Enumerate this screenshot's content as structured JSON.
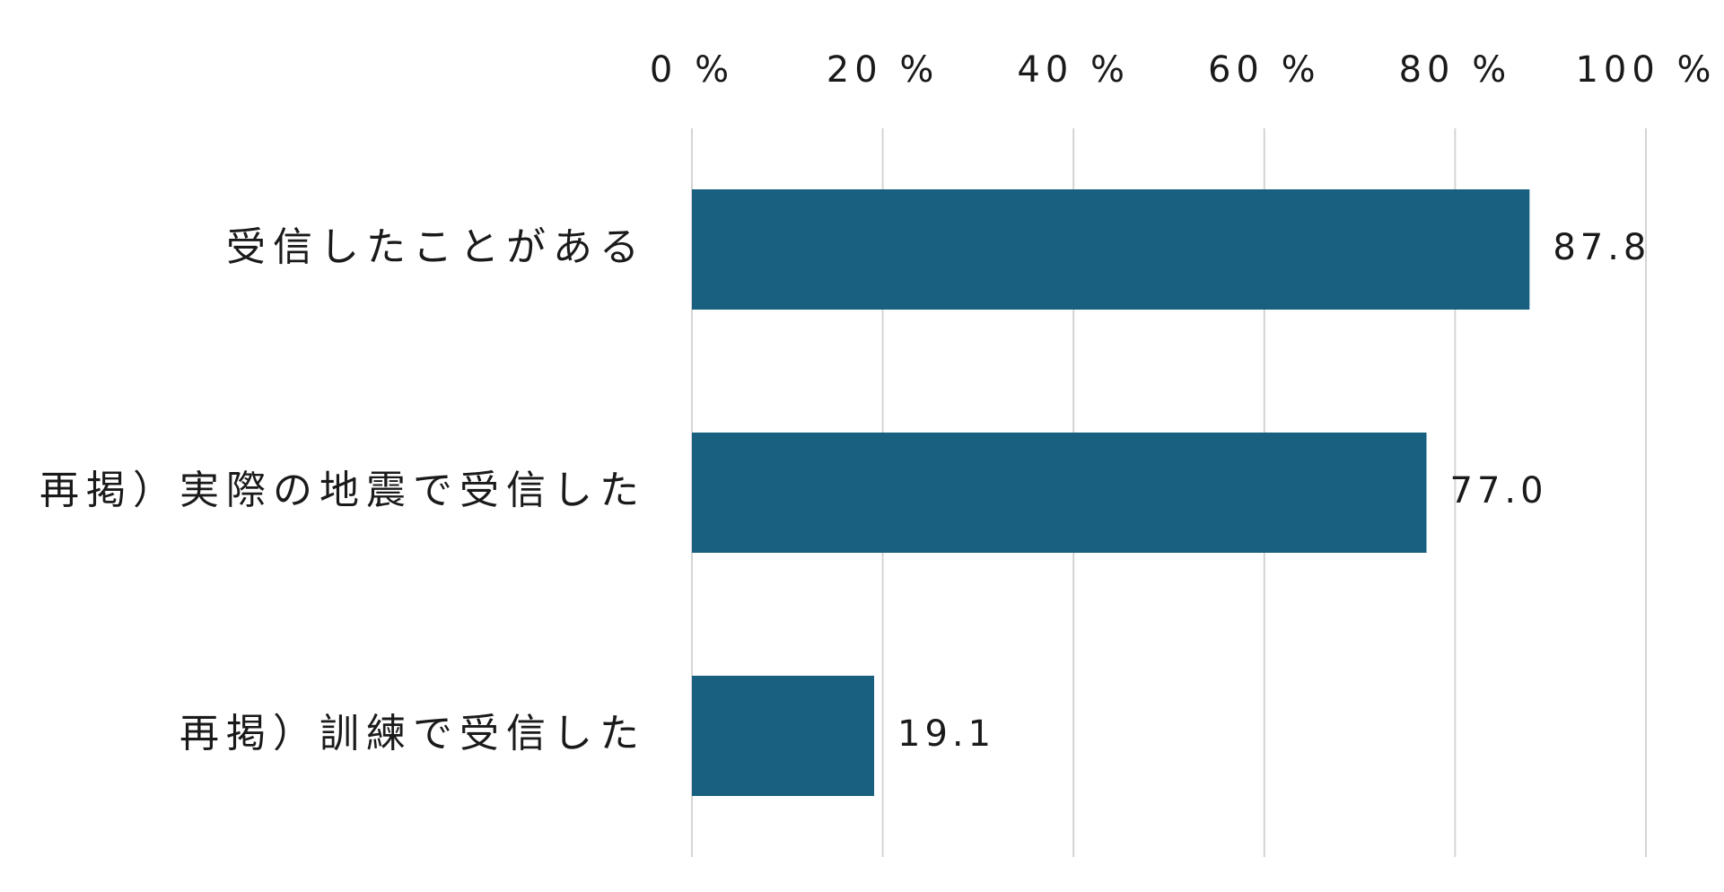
{
  "chart_data": {
    "type": "bar",
    "orientation": "horizontal",
    "categories": [
      "受信したことがある",
      "再掲）実際の地震で受信した",
      "再掲）訓練で受信した"
    ],
    "values": [
      87.8,
      77.0,
      19.1
    ],
    "value_labels": [
      "87.8",
      "77.0",
      "19.1"
    ],
    "x_ticks": [
      0,
      20,
      40,
      60,
      80,
      100
    ],
    "x_tick_labels": [
      "0 %",
      "20 %",
      "40 %",
      "60 %",
      "80 %",
      "100 %"
    ],
    "xlim": [
      0,
      100
    ],
    "x_axis_position": "top",
    "grid": true,
    "legend": "none",
    "colors": {
      "bar": "#185f80",
      "grid": "#d4d4d4",
      "text": "#1a1a1a"
    }
  }
}
